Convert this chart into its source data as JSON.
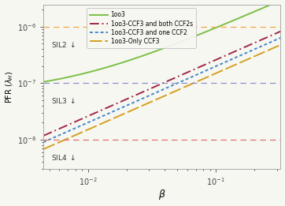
{
  "title": "",
  "xlabel": "$\\beta$",
  "ylabel": "PFR ($\\lambda_H$)",
  "xlim": [
    0.0045,
    0.32
  ],
  "ylim": [
    3e-09,
    2.5e-06
  ],
  "SIL2_level": 1e-06,
  "SIL3_level": 1e-07,
  "SIL4_level": 1e-08,
  "SIL2_color": "#F0A840",
  "SIL3_color": "#9090CC",
  "SIL4_color": "#E07070",
  "line_colors": {
    "1oo3": "#7CBF45",
    "both_CCF2": "#A02848",
    "one_CCF2": "#4488CC",
    "only_CCF3": "#D4A020"
  },
  "legend_labels": [
    "1oo3",
    "1oo3-CCF3 and both CCF2s",
    "1oo3-CCF3 and one CCF2",
    "1oo3-Only CCF3"
  ],
  "background_color": "#F7F7F2",
  "indep_floor": 6.5e-08,
  "coeff_1oo3_ccf": 9e-06,
  "coeff_both_ccf2": 2.6e-06,
  "coeff_one_ccf2": 2e-06,
  "coeff_only_ccf3": 1.5e-06
}
